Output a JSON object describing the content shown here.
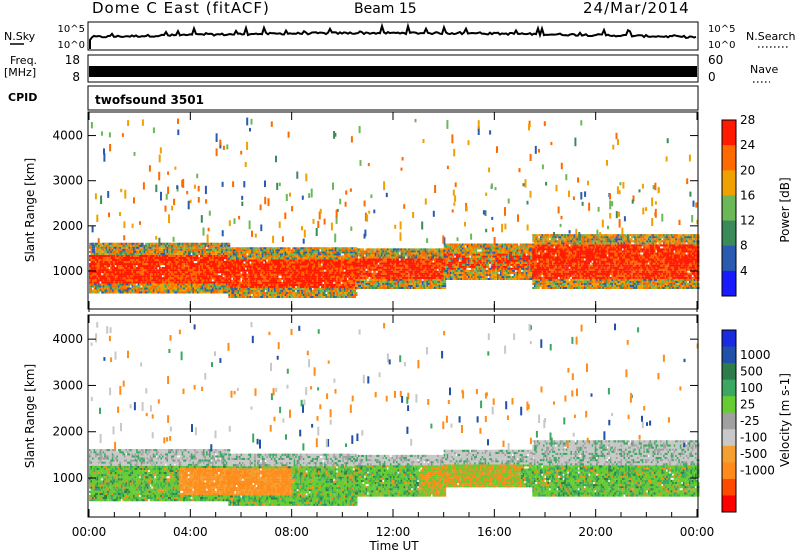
{
  "header": {
    "station": "Dome C East (fitACF)",
    "beam": "Beam 15",
    "date": "24/Mar/2014"
  },
  "params": {
    "nsky_label": "N.Sky",
    "nsky_ticks": [
      "10^5",
      "10^0"
    ],
    "nsearch_label": "N.Search",
    "nsearch_ticks": [
      "10^5",
      "10^0"
    ],
    "freq_label": "Freq.",
    "freq_unit": "[MHz]",
    "freq_ticks": [
      "18",
      "8"
    ],
    "nave_label": "Nave",
    "nave_ticks": [
      "60",
      "0"
    ],
    "cpid_label": "CPID",
    "cpid_value": "twofsound 3501"
  },
  "chart_data": [
    {
      "type": "heatmap",
      "name": "power",
      "ylabel": "Slant Range [km]",
      "yticks": [
        1000,
        2000,
        3000,
        4000
      ],
      "ylim": [
        180,
        4500
      ],
      "xlim": [
        0,
        24
      ],
      "colorbar_label": "Power [dB]",
      "colorbar_ticks": [
        "4",
        "8",
        "12",
        "16",
        "20",
        "24",
        "28"
      ],
      "colors": [
        "#1a1aff",
        "#2a5bb0",
        "#3b8a5a",
        "#6cb858",
        "#f0a000",
        "#ff6a00",
        "#ff1a00"
      ],
      "bands": [
        {
          "x": [
            0,
            5.5
          ],
          "y": [
            500,
            1600
          ],
          "level": "high"
        },
        {
          "x": [
            5.5,
            10.5
          ],
          "y": [
            400,
            1500
          ],
          "level": "high"
        },
        {
          "x": [
            10.5,
            14
          ],
          "y": [
            600,
            1500
          ],
          "level": "high"
        },
        {
          "x": [
            14,
            17.5
          ],
          "y": [
            800,
            1600
          ],
          "level": "medium"
        },
        {
          "x": [
            17.5,
            24
          ],
          "y": [
            600,
            1800
          ],
          "level": "high"
        }
      ]
    },
    {
      "type": "heatmap",
      "name": "velocity",
      "ylabel": "Slant Range [km]",
      "yticks": [
        1000,
        2000,
        3000,
        4000
      ],
      "ylim": [
        180,
        4500
      ],
      "xlim": [
        0,
        24
      ],
      "xlabel": "Time UT",
      "xticks": [
        "00:00",
        "04:00",
        "08:00",
        "12:00",
        "16:00",
        "20:00",
        "00:00"
      ],
      "colorbar_label": "Velocity [m s-1]",
      "colorbar_ticks": [
        "1000",
        "500",
        "100",
        "25",
        "-25",
        "-100",
        "-500",
        "-1000"
      ],
      "colors": [
        "#ff0000",
        "#ff4a00",
        "#ff8c1a",
        "#f4a030",
        "#c8c8c8",
        "#a0a0a0",
        "#66cc33",
        "#3aa860",
        "#2d7d4a",
        "#2050a8",
        "#1a2ae0"
      ]
    }
  ]
}
